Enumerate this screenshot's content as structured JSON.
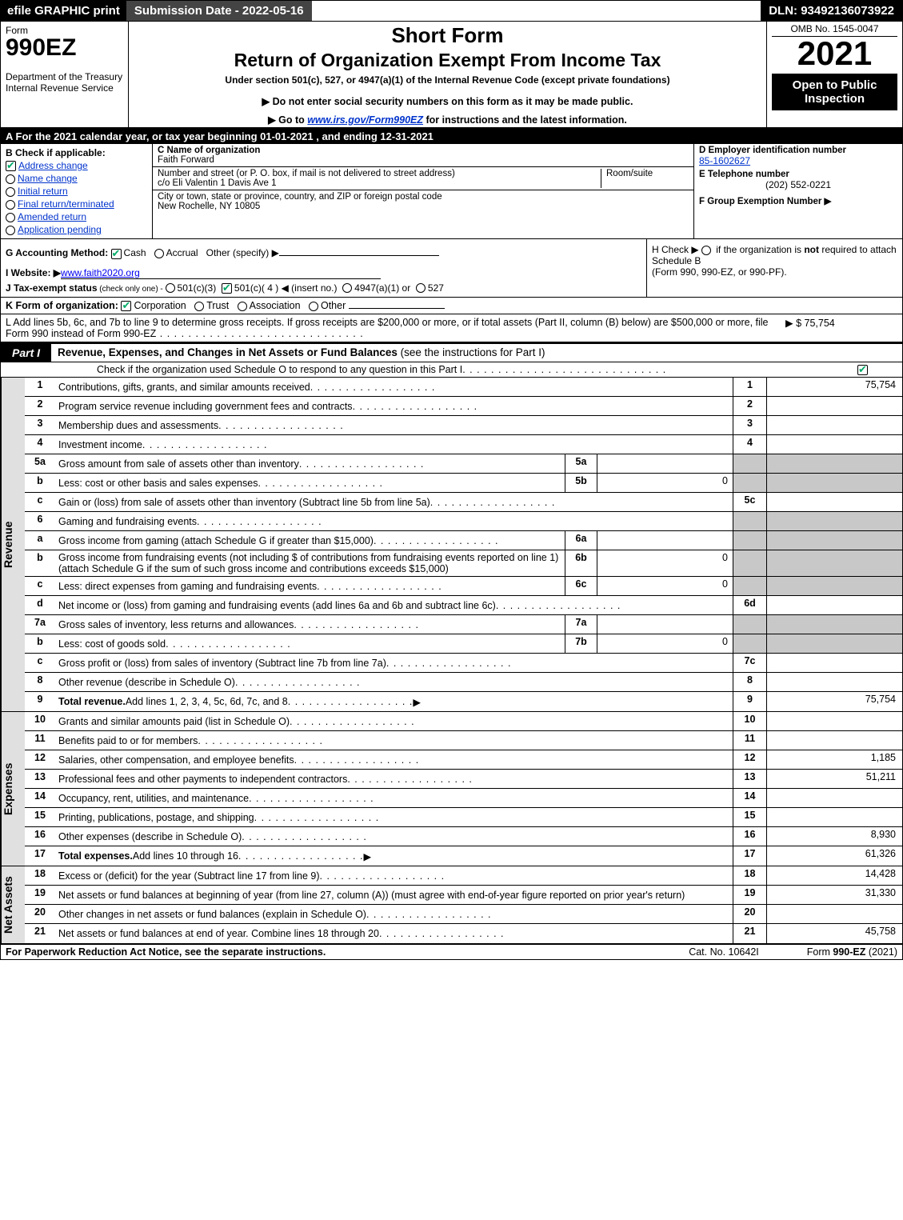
{
  "topbar": {
    "efile": "efile GRAPHIC print",
    "submission": "Submission Date - 2022-05-16",
    "dln": "DLN: 93492136073922"
  },
  "header": {
    "form": "Form",
    "formno": "990EZ",
    "dept": "Department of the Treasury\nInternal Revenue Service",
    "short": "Short Form",
    "ret": "Return of Organization Exempt From Income Tax",
    "under": "Under section 501(c), 527, or 4947(a)(1) of the Internal Revenue Code (except private foundations)",
    "donot": "▶ Do not enter social security numbers on this form as it may be made public.",
    "goto_pre": "▶ Go to ",
    "goto_link": "www.irs.gov/Form990EZ",
    "goto_post": " for instructions and the latest information.",
    "omb": "OMB No. 1545-0047",
    "year": "2021",
    "open": "Open to Public Inspection"
  },
  "rowA": "A  For the 2021 calendar year, or tax year beginning 01-01-2021 , and ending 12-31-2021",
  "B": {
    "title": "B  Check if applicable:",
    "items": [
      "Address change",
      "Name change",
      "Initial return",
      "Final return/terminated",
      "Amended return",
      "Application pending"
    ],
    "checked": [
      true,
      false,
      false,
      false,
      false,
      false
    ]
  },
  "C": {
    "name_lbl": "C Name of organization",
    "name": "Faith Forward",
    "addr_lbl": "Number and street (or P. O. box, if mail is not delivered to street address)",
    "room_lbl": "Room/suite",
    "addr": "c/o Eli Valentin 1 Davis Ave 1",
    "city_lbl": "City or town, state or province, country, and ZIP or foreign postal code",
    "city": "New Rochelle, NY  10805"
  },
  "D": {
    "ein_lbl": "D Employer identification number",
    "ein": "85-1602627",
    "tel_lbl": "E Telephone number",
    "tel": "(202) 552-0221",
    "grp_lbl": "F Group Exemption Number   ▶"
  },
  "G": {
    "lbl": "G Accounting Method: ",
    "cash": "Cash",
    "accrual": "Accrual",
    "other": "Other (specify) ▶"
  },
  "H": {
    "text1": "H  Check ▶ ",
    "text2": " if the organization is ",
    "not": "not",
    "text3": " required to attach Schedule B",
    "text4": "(Form 990, 990-EZ, or 990-PF)."
  },
  "I": {
    "lbl": "I Website: ▶",
    "val": "www.faith2020.org"
  },
  "J": {
    "lbl": "J Tax-exempt status",
    "sub": " (check only one) - ",
    "o1": "501(c)(3)",
    "o2": "501(c)( 4 ) ◀ (insert no.)",
    "o3": "4947(a)(1) or",
    "o4": "527"
  },
  "K": {
    "lbl": "K Form of organization: ",
    "o1": "Corporation",
    "o2": "Trust",
    "o3": "Association",
    "o4": "Other"
  },
  "L": {
    "text": "L Add lines 5b, 6c, and 7b to line 9 to determine gross receipts. If gross receipts are $200,000 or more, or if total assets (Part II, column (B) below) are $500,000 or more, file Form 990 instead of Form 990-EZ",
    "amt": "▶ $ 75,754"
  },
  "partI": {
    "tab": "Part I",
    "title": "Revenue, Expenses, and Changes in Net Assets or Fund Balances",
    "paren": " (see the instructions for Part I)",
    "sub": "Check if the organization used Schedule O to respond to any question in this Part I"
  },
  "revenue": [
    {
      "n": "1",
      "d": "Contributions, gifts, grants, and similar amounts received",
      "c": "1",
      "v": "75,754"
    },
    {
      "n": "2",
      "d": "Program service revenue including government fees and contracts",
      "c": "2",
      "v": ""
    },
    {
      "n": "3",
      "d": "Membership dues and assessments",
      "c": "3",
      "v": ""
    },
    {
      "n": "4",
      "d": "Investment income",
      "c": "4",
      "v": ""
    },
    {
      "n": "5a",
      "d": "Gross amount from sale of assets other than inventory",
      "mid_id": "5a",
      "mid_v": ""
    },
    {
      "n": "b",
      "d": "Less: cost or other basis and sales expenses",
      "mid_id": "5b",
      "mid_v": "0"
    },
    {
      "n": "c",
      "d": "Gain or (loss) from sale of assets other than inventory (Subtract line 5b from line 5a)",
      "c": "5c",
      "v": ""
    },
    {
      "n": "6",
      "d": "Gaming and fundraising events"
    },
    {
      "n": "a",
      "d": "Gross income from gaming (attach Schedule G if greater than $15,000)",
      "mid_id": "6a",
      "mid_v": ""
    },
    {
      "n": "b",
      "d": "Gross income from fundraising events (not including $                      of contributions from fundraising events reported on line 1) (attach Schedule G if the sum of such gross income and contributions exceeds $15,000)",
      "mid_id": "6b",
      "mid_v": "0",
      "wrap": true
    },
    {
      "n": "c",
      "d": "Less: direct expenses from gaming and fundraising events",
      "mid_id": "6c",
      "mid_v": "0"
    },
    {
      "n": "d",
      "d": "Net income or (loss) from gaming and fundraising events (add lines 6a and 6b and subtract line 6c)",
      "c": "6d",
      "v": ""
    },
    {
      "n": "7a",
      "d": "Gross sales of inventory, less returns and allowances",
      "mid_id": "7a",
      "mid_v": ""
    },
    {
      "n": "b",
      "d": "Less: cost of goods sold",
      "mid_id": "7b",
      "mid_v": "0"
    },
    {
      "n": "c",
      "d": "Gross profit or (loss) from sales of inventory (Subtract line 7b from line 7a)",
      "c": "7c",
      "v": ""
    },
    {
      "n": "8",
      "d": "Other revenue (describe in Schedule O)",
      "c": "8",
      "v": ""
    },
    {
      "n": "9",
      "d": "Total revenue. Add lines 1, 2, 3, 4, 5c, 6d, 7c, and 8",
      "c": "9",
      "v": "75,754",
      "bold": true,
      "arrow": true
    }
  ],
  "expenses": [
    {
      "n": "10",
      "d": "Grants and similar amounts paid (list in Schedule O)",
      "c": "10",
      "v": ""
    },
    {
      "n": "11",
      "d": "Benefits paid to or for members",
      "c": "11",
      "v": ""
    },
    {
      "n": "12",
      "d": "Salaries, other compensation, and employee benefits",
      "c": "12",
      "v": "1,185"
    },
    {
      "n": "13",
      "d": "Professional fees and other payments to independent contractors",
      "c": "13",
      "v": "51,211"
    },
    {
      "n": "14",
      "d": "Occupancy, rent, utilities, and maintenance",
      "c": "14",
      "v": ""
    },
    {
      "n": "15",
      "d": "Printing, publications, postage, and shipping",
      "c": "15",
      "v": ""
    },
    {
      "n": "16",
      "d": "Other expenses (describe in Schedule O)",
      "c": "16",
      "v": "8,930"
    },
    {
      "n": "17",
      "d": "Total expenses. Add lines 10 through 16",
      "c": "17",
      "v": "61,326",
      "bold": true,
      "arrow": true
    }
  ],
  "netassets": [
    {
      "n": "18",
      "d": "Excess or (deficit) for the year (Subtract line 17 from line 9)",
      "c": "18",
      "v": "14,428"
    },
    {
      "n": "19",
      "d": "Net assets or fund balances at beginning of year (from line 27, column (A)) (must agree with end-of-year figure reported on prior year's return)",
      "c": "19",
      "v": "31,330",
      "wrap": true
    },
    {
      "n": "20",
      "d": "Other changes in net assets or fund balances (explain in Schedule O)",
      "c": "20",
      "v": ""
    },
    {
      "n": "21",
      "d": "Net assets or fund balances at end of year. Combine lines 18 through 20",
      "c": "21",
      "v": "45,758"
    }
  ],
  "side": {
    "rev": "Revenue",
    "exp": "Expenses",
    "net": "Net Assets"
  },
  "footer": {
    "l": "For Paperwork Reduction Act Notice, see the separate instructions.",
    "c": "Cat. No. 10642I",
    "r": "Form 990-EZ (2021)"
  }
}
